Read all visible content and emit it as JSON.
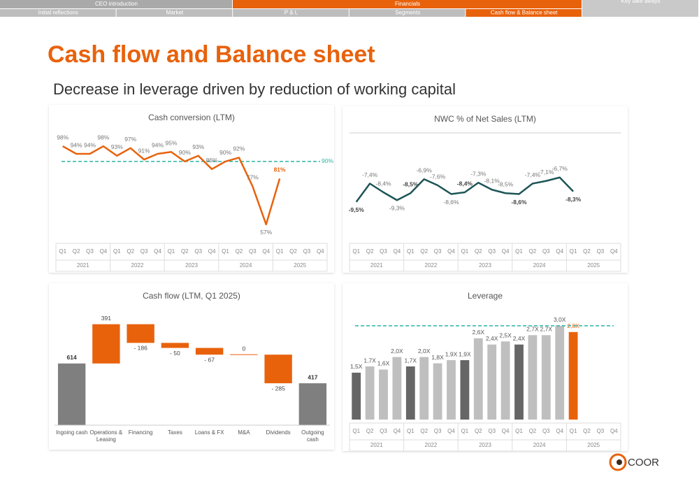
{
  "nav": {
    "top": [
      {
        "label": "CEO introduction",
        "active": false
      },
      {
        "label": "Financials",
        "active": true
      },
      {
        "label": "Key take aways",
        "active": false
      }
    ],
    "sub": [
      {
        "label": "Initial reflections",
        "active": false
      },
      {
        "label": "Market",
        "active": false
      },
      {
        "label": "P & L",
        "active": false
      },
      {
        "label": "Segments",
        "active": false
      },
      {
        "label": "Cash flow & Balance sheet",
        "active": true
      }
    ]
  },
  "header": {
    "title": "Cash flow and Balance sheet",
    "subtitle": "Decrease in leverage driven by reduction of working capital"
  },
  "chart_data": [
    {
      "type": "line",
      "title": "Cash conversion (LTM)",
      "categories": [
        "Q1",
        "Q2",
        "Q3",
        "Q4",
        "Q1",
        "Q2",
        "Q3",
        "Q4",
        "Q1",
        "Q2",
        "Q3",
        "Q4",
        "Q1",
        "Q2",
        "Q3",
        "Q4",
        "Q1",
        "Q2",
        "Q3",
        "Q4"
      ],
      "years": [
        "2021",
        "2022",
        "2023",
        "2024",
        "2025"
      ],
      "values": [
        98,
        94,
        94,
        98,
        93,
        97,
        91,
        94,
        95,
        90,
        93,
        86,
        90,
        92,
        77,
        57,
        81,
        null,
        null,
        null
      ],
      "value_labels": [
        "98%",
        "94%",
        "94%",
        "98%",
        "93%",
        "97%",
        "91%",
        "94%",
        "95%",
        "90%",
        "93%",
        "86%",
        "90%",
        "92%",
        "77%",
        "57%",
        "81%",
        null,
        null,
        null
      ],
      "color": "#e8620c",
      "highlight_color": "#e8620c",
      "ylim": [
        50,
        105
      ],
      "reference_line": {
        "value": 90,
        "label": "90%",
        "color": "#2ab5a5"
      }
    },
    {
      "type": "line",
      "title": "NWC % of Net Sales (LTM)",
      "categories": [
        "Q1",
        "Q2",
        "Q3",
        "Q4",
        "Q1",
        "Q2",
        "Q3",
        "Q4",
        "Q1",
        "Q2",
        "Q3",
        "Q4",
        "Q1",
        "Q2",
        "Q3",
        "Q4",
        "Q1",
        "Q2",
        "Q3",
        "Q4"
      ],
      "years": [
        "2021",
        "2022",
        "2023",
        "2024",
        "2025"
      ],
      "values": [
        -9.5,
        -7.4,
        -8.4,
        -9.3,
        -8.5,
        -6.9,
        -7.6,
        -8.6,
        -8.4,
        -7.3,
        -8.1,
        -8.5,
        -8.6,
        -7.4,
        -7.1,
        -6.7,
        -8.3,
        null,
        null,
        null
      ],
      "value_labels": [
        "-9,5%",
        "-7,4%",
        "-8,4%",
        "-9,3%",
        "-8,5%",
        "-6,9%",
        "-7,6%",
        "-8,6%",
        "-8,4%",
        "-7,3%",
        "-8,1%",
        "-8,5%",
        "-8,6%",
        "-7,4%",
        "-7,1%",
        "-6,7%",
        "-8,3%",
        null,
        null,
        null
      ],
      "color": "#1d5557",
      "highlight_color": "#e8620c",
      "ylim": [
        -14,
        -2
      ]
    },
    {
      "type": "waterfall",
      "title": "Cash flow (LTM, Q1 2025)",
      "categories": [
        "Ingoing cash",
        "Operations & Leasing",
        "Financing",
        "Taxes",
        "Loans & FX",
        "M&A",
        "Dividends",
        "Outgoing cash"
      ],
      "values": [
        614,
        391,
        -186,
        -50,
        -67,
        0,
        -285,
        417
      ],
      "value_labels": [
        "614",
        "391",
        "- 186",
        "- 50",
        "- 67",
        "0",
        "- 285",
        "417"
      ],
      "color": "#e8620c",
      "total_color": "#7f7f7f",
      "ylim": [
        0,
        1100
      ]
    },
    {
      "type": "bar",
      "title": "Leverage",
      "categories": [
        "Q1",
        "Q2",
        "Q3",
        "Q4",
        "Q1",
        "Q2",
        "Q3",
        "Q4",
        "Q1",
        "Q2",
        "Q3",
        "Q4",
        "Q1",
        "Q2",
        "Q3",
        "Q4",
        "Q1",
        "Q2",
        "Q3",
        "Q4"
      ],
      "years": [
        "2021",
        "2022",
        "2023",
        "2024",
        "2025"
      ],
      "values": [
        1.5,
        1.7,
        1.6,
        2.0,
        1.7,
        2.0,
        1.8,
        1.9,
        1.9,
        2.6,
        2.4,
        2.5,
        2.4,
        2.7,
        2.7,
        3.0,
        2.8,
        null,
        null,
        null
      ],
      "value_labels": [
        "1,5X",
        "1,7X",
        "1,6X",
        "2,0X",
        "1,7X",
        "2,0X",
        "1,8X",
        "1,9X",
        "1,9X",
        "2,6X",
        "2,4X",
        "2,5X",
        "2,4X",
        "2,7X",
        "2,7X",
        "3,0X",
        "2,8X",
        null,
        null,
        null
      ],
      "colors": [
        "#666666",
        "#bfbfbf",
        "#bfbfbf",
        "#bfbfbf",
        "#666666",
        "#bfbfbf",
        "#bfbfbf",
        "#bfbfbf",
        "#666666",
        "#bfbfbf",
        "#bfbfbf",
        "#bfbfbf",
        "#666666",
        "#bfbfbf",
        "#bfbfbf",
        "#bfbfbf",
        "#e8620c",
        "#bfbfbf",
        "#bfbfbf",
        "#bfbfbf"
      ],
      "ylim": [
        0,
        3.4
      ],
      "reference_line": {
        "value": 3,
        "color": "#2ab5a5"
      }
    }
  ],
  "logo": "COOR"
}
